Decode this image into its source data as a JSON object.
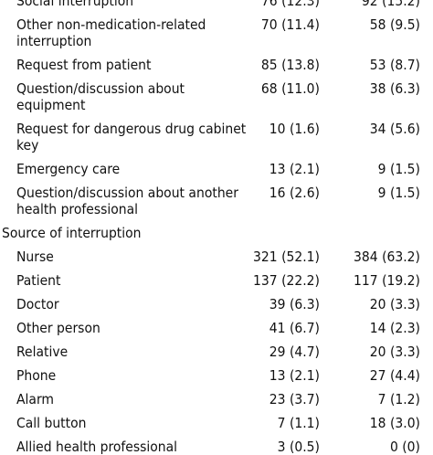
{
  "rows": [
    {
      "label": "Social interruption",
      "v1": "76 (12.3)",
      "v2": "92 (15.2)",
      "type": "partial"
    },
    {
      "label": "Other non-medication-related\ninterruption",
      "v1": "70 (11.4)",
      "v2": "58 (9.5)",
      "type": "item"
    },
    {
      "label": "Request from patient",
      "v1": "85 (13.8)",
      "v2": "53 (8.7)",
      "type": "item"
    },
    {
      "label": "Question/discussion about equipment",
      "v1": "68 (11.0)",
      "v2": "38 (6.3)",
      "type": "item"
    },
    {
      "label": "Request for dangerous drug cabinet\nkey",
      "v1": "10 (1.6)",
      "v2": "34 (5.6)",
      "type": "item"
    },
    {
      "label": "Emergency care",
      "v1": "13 (2.1)",
      "v2": "9 (1.5)",
      "type": "item"
    },
    {
      "label": "Question/discussion about another\nhealth professional",
      "v1": "16 (2.6)",
      "v2": "9 (1.5)",
      "type": "item"
    },
    {
      "label": "Source of interruption",
      "v1": "",
      "v2": "",
      "type": "section"
    },
    {
      "label": "Nurse",
      "v1": "321 (52.1)",
      "v2": "384 (63.2)",
      "type": "item"
    },
    {
      "label": "Patient",
      "v1": "137 (22.2)",
      "v2": "117 (19.2)",
      "type": "item"
    },
    {
      "label": "Doctor",
      "v1": "39 (6.3)",
      "v2": "20 (3.3)",
      "type": "item"
    },
    {
      "label": "Other person",
      "v1": "41 (6.7)",
      "v2": "14 (2.3)",
      "type": "item"
    },
    {
      "label": "Relative",
      "v1": "29 (4.7)",
      "v2": "20 (3.3)",
      "type": "item"
    },
    {
      "label": "Phone",
      "v1": "13 (2.1)",
      "v2": "27 (4.4)",
      "type": "item"
    },
    {
      "label": "Alarm",
      "v1": "23 (3.7)",
      "v2": "7 (1.2)",
      "type": "item"
    },
    {
      "label": "Call button",
      "v1": "7 (1.1)",
      "v2": "18 (3.0)",
      "type": "item"
    },
    {
      "label": "Allied health professional",
      "v1": "3 (0.5)",
      "v2": "0 (0)",
      "type": "item"
    }
  ]
}
